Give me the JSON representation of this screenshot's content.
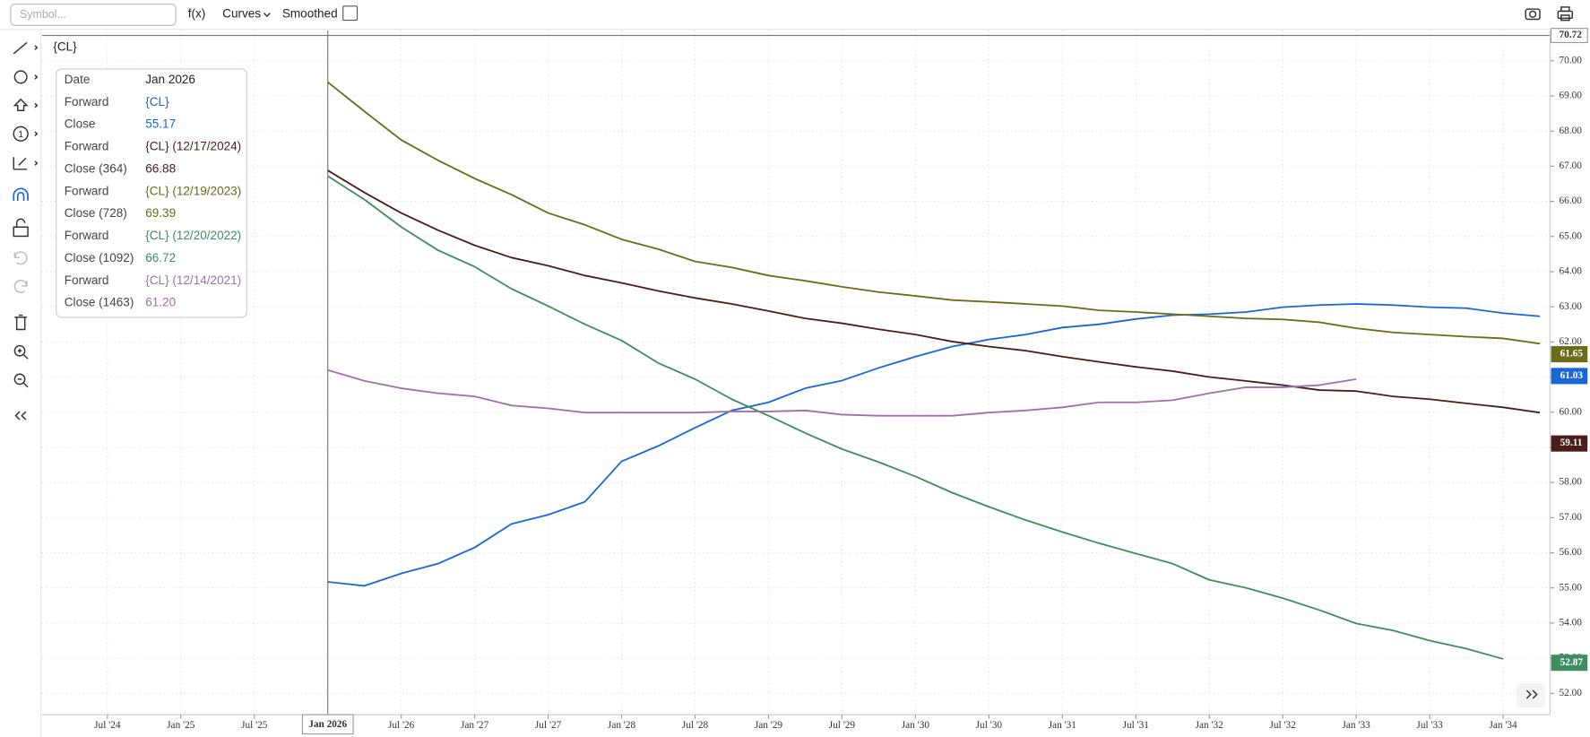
{
  "toolbar": {
    "symbol_placeholder": "Symbol...",
    "fx": "f(x)",
    "curves": "Curves",
    "smoothed": "Smoothed"
  },
  "chart_label": "{CL}",
  "tooltip": {
    "rows": [
      {
        "label": "Date",
        "value": "Jan 2026"
      },
      {
        "label": "Forward",
        "value": "{CL}"
      },
      {
        "label": "Close",
        "value": "55.17"
      },
      {
        "label": "Forward",
        "value": "{CL} (12/17/2024)"
      },
      {
        "label": "Close (364)",
        "value": "66.88"
      },
      {
        "label": "Forward",
        "value": "{CL} (12/19/2023)"
      },
      {
        "label": "Close (728)",
        "value": "69.39"
      },
      {
        "label": "Forward",
        "value": "{CL} (12/20/2022)"
      },
      {
        "label": "Close (1092)",
        "value": "66.72"
      },
      {
        "label": "Forward",
        "value": "{CL} (12/14/2021)"
      },
      {
        "label": "Close (1463)",
        "value": "61.20"
      }
    ]
  },
  "chart_data": {
    "type": "line",
    "x": [
      "2026-01",
      "2026-04",
      "2026-07",
      "2026-10",
      "2027-01",
      "2027-04",
      "2027-07",
      "2027-10",
      "2028-01",
      "2028-04",
      "2028-07",
      "2028-10",
      "2029-01",
      "2029-04",
      "2029-07",
      "2029-10",
      "2030-01",
      "2030-04",
      "2030-07",
      "2030-10",
      "2031-01",
      "2031-04",
      "2031-07",
      "2031-10",
      "2032-01",
      "2032-04",
      "2032-07",
      "2032-10",
      "2033-01",
      "2033-04",
      "2033-07",
      "2033-10",
      "2034-01",
      "2034-04"
    ],
    "xlim": [
      "2024-01",
      "2034-04"
    ],
    "xticks": [
      {
        "value": "2024-07",
        "label": "Jul '24"
      },
      {
        "value": "2025-01",
        "label": "Jan '25"
      },
      {
        "value": "2025-07",
        "label": "Jul '25"
      },
      {
        "value": "2026-01",
        "label": "Jan 2026"
      },
      {
        "value": "2026-07",
        "label": "Jul '26"
      },
      {
        "value": "2027-01",
        "label": "Jan '27"
      },
      {
        "value": "2027-07",
        "label": "Jul '27"
      },
      {
        "value": "2028-01",
        "label": "Jan '28"
      },
      {
        "value": "2028-07",
        "label": "Jul '28"
      },
      {
        "value": "2029-01",
        "label": "Jan '29"
      },
      {
        "value": "2029-07",
        "label": "Jul '29"
      },
      {
        "value": "2030-01",
        "label": "Jan '30"
      },
      {
        "value": "2030-07",
        "label": "Jul '30"
      },
      {
        "value": "2031-01",
        "label": "Jan '31"
      },
      {
        "value": "2031-07",
        "label": "Jul '31"
      },
      {
        "value": "2032-01",
        "label": "Jan '32"
      },
      {
        "value": "2032-07",
        "label": "Jul '32"
      },
      {
        "value": "2033-01",
        "label": "Jan '33"
      },
      {
        "value": "2033-07",
        "label": "Jul '33"
      },
      {
        "value": "2034-01",
        "label": "Jan '34"
      }
    ],
    "ylim": [
      51.45,
      70.72
    ],
    "yticks": [
      {
        "value": 52,
        "label": "52.00"
      },
      {
        "value": 53,
        "label": "53.00"
      },
      {
        "value": 54,
        "label": "54.00"
      },
      {
        "value": 55,
        "label": "55.00"
      },
      {
        "value": 56,
        "label": "56.00"
      },
      {
        "value": 57,
        "label": "57.00"
      },
      {
        "value": 58,
        "label": "58.00"
      },
      {
        "value": 59,
        "label": "59.00"
      },
      {
        "value": 60,
        "label": "60.00"
      },
      {
        "value": 61,
        "label": "61.00"
      },
      {
        "value": 62,
        "label": "62.00"
      },
      {
        "value": 63,
        "label": "63.00"
      },
      {
        "value": 64,
        "label": "64.00"
      },
      {
        "value": 65,
        "label": "65.00"
      },
      {
        "value": 66,
        "label": "66.00"
      },
      {
        "value": 67,
        "label": "67.00"
      },
      {
        "value": 68,
        "label": "68.00"
      },
      {
        "value": 69,
        "label": "69.00"
      },
      {
        "value": 70,
        "label": "70.00"
      }
    ],
    "cursor_y": 70.72,
    "grid": true,
    "series": [
      {
        "name": "{CL}",
        "color": "#1a66d6",
        "price_tag": 61.03,
        "values": [
          55.17,
          55.06,
          55.41,
          55.69,
          56.15,
          56.82,
          57.08,
          57.45,
          58.6,
          59.04,
          59.56,
          60.05,
          60.28,
          60.68,
          60.9,
          61.26,
          61.58,
          61.87,
          62.07,
          62.21,
          62.41,
          62.5,
          62.65,
          62.76,
          62.79,
          62.85,
          62.99,
          63.05,
          63.08,
          63.05,
          62.99,
          62.96,
          62.82,
          62.73
        ]
      },
      {
        "name": "{CL} (12/17/2024)",
        "color": "#4a1c1c",
        "price_tag": 59.11,
        "values": [
          66.88,
          66.25,
          65.67,
          65.18,
          64.75,
          64.4,
          64.17,
          63.89,
          63.68,
          63.45,
          63.25,
          63.08,
          62.88,
          62.67,
          62.53,
          62.36,
          62.21,
          62.01,
          61.87,
          61.75,
          61.58,
          61.43,
          61.29,
          61.17,
          61.0,
          60.89,
          60.77,
          60.63,
          60.6,
          60.45,
          60.37,
          60.25,
          60.14,
          59.99
        ]
      },
      {
        "name": "{CL} (12/19/2023)",
        "color": "#6b6b1a",
        "price_tag": 61.65,
        "values": [
          69.39,
          68.56,
          67.75,
          67.17,
          66.65,
          66.19,
          65.67,
          65.33,
          64.92,
          64.64,
          64.29,
          64.12,
          63.89,
          63.74,
          63.57,
          63.42,
          63.31,
          63.19,
          63.14,
          63.08,
          63.02,
          62.9,
          62.85,
          62.79,
          62.73,
          62.67,
          62.64,
          62.56,
          62.39,
          62.27,
          62.21,
          62.15,
          62.1,
          61.95
        ]
      },
      {
        "name": "{CL} (12/20/2022)",
        "color": "#3f8c5f",
        "price_tag": 52.87,
        "values": [
          66.72,
          66.05,
          65.27,
          64.61,
          64.14,
          63.51,
          63.02,
          62.5,
          62.04,
          61.4,
          60.94,
          60.37,
          59.9,
          59.41,
          58.95,
          58.58,
          58.17,
          57.71,
          57.31,
          56.93,
          56.59,
          56.27,
          55.98,
          55.69,
          55.23,
          55.0,
          54.71,
          54.37,
          53.99,
          53.79,
          53.5,
          53.27,
          52.98,
          null
        ]
      },
      {
        "name": "{CL} (12/14/2021)",
        "color": "#a070a8",
        "values": [
          61.2,
          60.89,
          60.68,
          60.54,
          60.45,
          60.19,
          60.11,
          59.99,
          59.99,
          59.99,
          59.99,
          60.02,
          60.02,
          60.05,
          59.93,
          59.9,
          59.9,
          59.9,
          59.99,
          60.05,
          60.14,
          60.28,
          60.28,
          60.34,
          60.54,
          60.71,
          60.71,
          60.77,
          60.94,
          null,
          null,
          null,
          null,
          null
        ]
      }
    ]
  }
}
